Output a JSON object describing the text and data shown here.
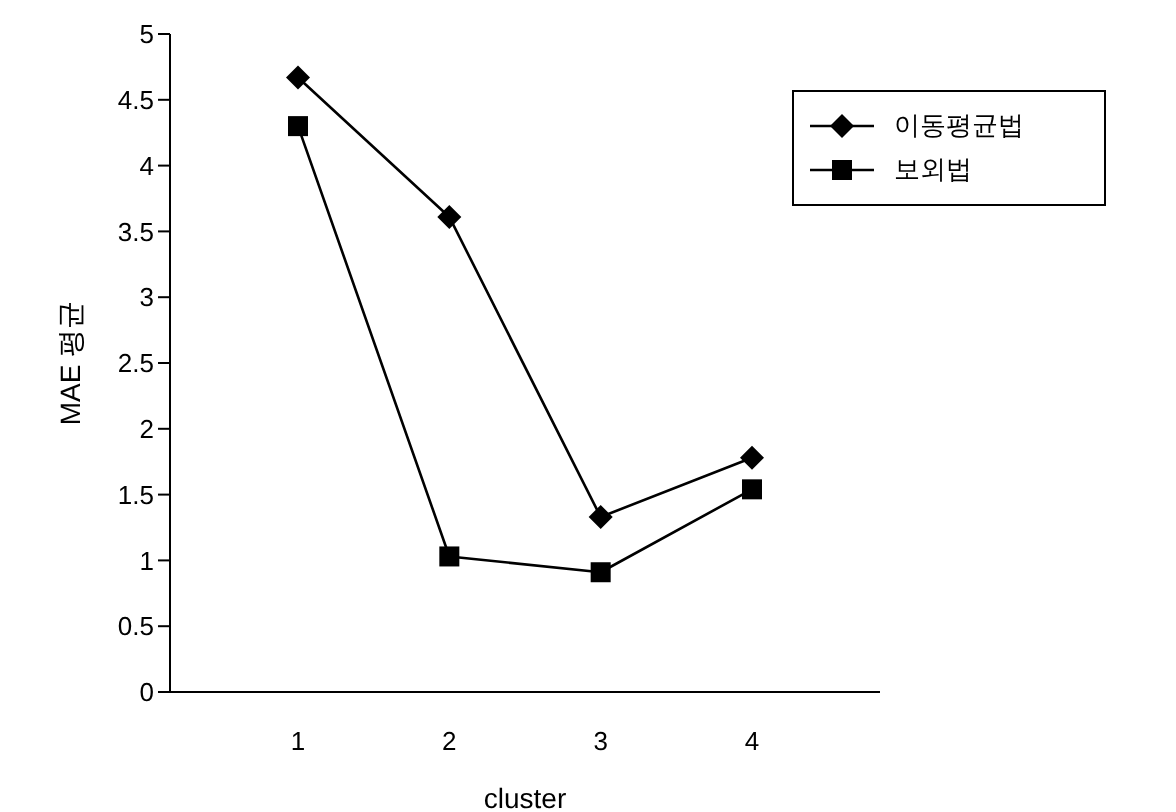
{
  "chart_data": {
    "type": "line",
    "xlabel": "cluster",
    "ylabel": "MAE 평균",
    "categories": [
      "1",
      "2",
      "3",
      "4"
    ],
    "ylim": [
      0,
      5
    ],
    "yticks": [
      0,
      0.5,
      1,
      1.5,
      2,
      2.5,
      3,
      3.5,
      4,
      4.5,
      5
    ],
    "grid": false,
    "legend": "top right",
    "series": [
      {
        "name": "이동평균법",
        "color": "#000000",
        "marker": "diamond",
        "values": [
          4.67,
          3.61,
          1.33,
          1.78
        ]
      },
      {
        "name": "보외법",
        "color": "#000000",
        "marker": "square",
        "values": [
          4.3,
          1.03,
          0.91,
          1.54
        ]
      }
    ]
  }
}
